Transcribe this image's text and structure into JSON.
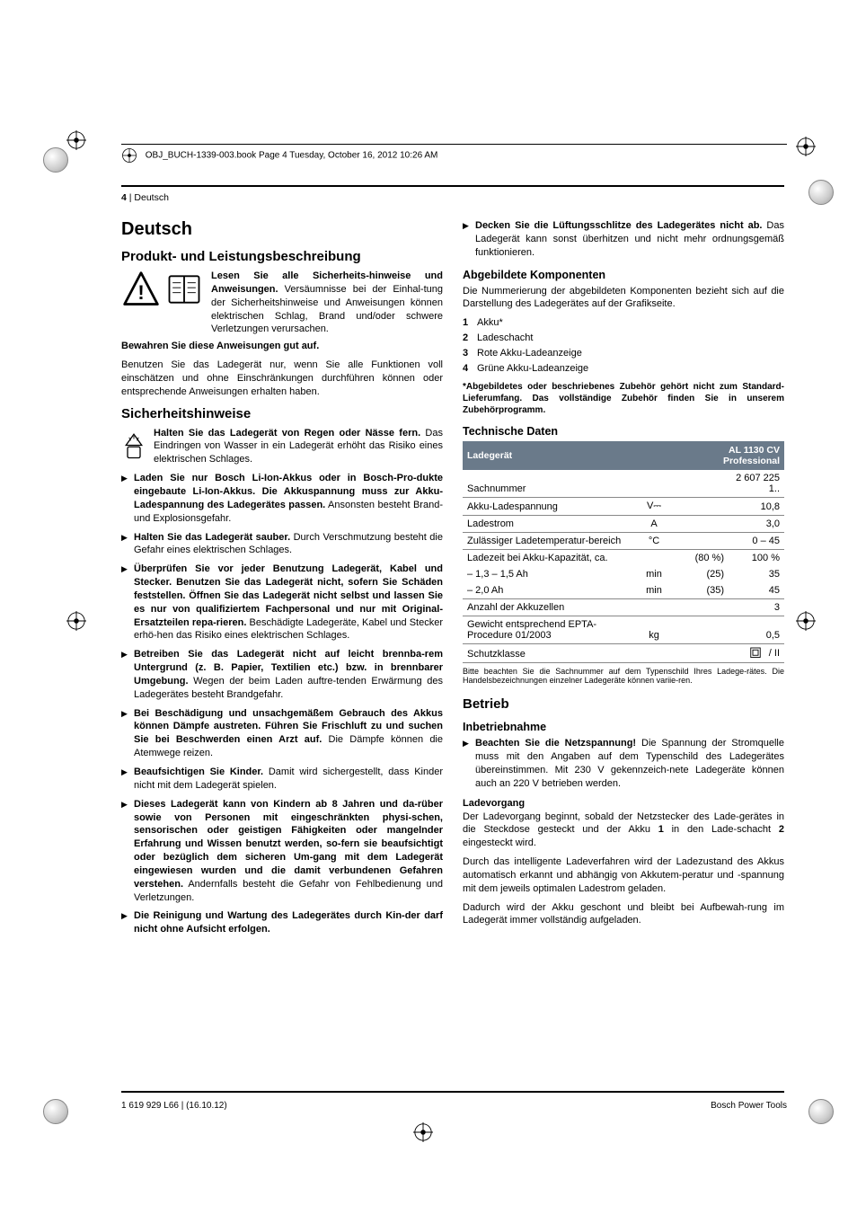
{
  "meta": {
    "header_line": "OBJ_BUCH-1339-003.book  Page 4  Tuesday, October 16, 2012  10:26 AM",
    "page_num": "4",
    "page_lang": "Deutsch",
    "footer_left": "1 619 929 L66 | (16.10.12)",
    "footer_right": "Bosch Power Tools"
  },
  "left": {
    "h1": "Deutsch",
    "h2a": "Produkt- und Leistungsbeschreibung",
    "intro_bold": "Lesen Sie alle Sicherheits-hinweise und Anweisungen.",
    "intro_rest": " Versäumnisse bei der Einhal-tung der Sicherheitshinweise und Anweisungen können elektrischen Schlag, Brand und/oder schwere Verletzungen verursachen.",
    "intro_keep": "Bewahren Sie diese Anweisungen gut auf.",
    "intro_use": "Benutzen Sie das Ladegerät nur, wenn Sie alle Funktionen voll einschätzen und ohne Einschränkungen durchführen können oder entsprechende Anweisungen erhalten haben.",
    "h2b": "Sicherheitshinweise",
    "rain_bold": "Halten Sie das Ladegerät von Regen oder Nässe fern.",
    "rain_rest": " Das Eindringen von Wasser in ein Ladegerät erhöht das Risiko eines elektrischen Schlages.",
    "bullets": [
      {
        "b": "Laden Sie nur Bosch Li-Ion-Akkus oder in Bosch-Pro-dukte eingebaute Li-Ion-Akkus. Die Akkuspannung muss zur Akku-Ladespannung des Ladegerätes passen.",
        "r": " Ansonsten besteht Brand- und Explosionsgefahr."
      },
      {
        "b": "Halten Sie das Ladegerät sauber.",
        "r": " Durch Verschmutzung besteht die Gefahr eines elektrischen Schlages."
      },
      {
        "b": "Überprüfen Sie vor jeder Benutzung Ladegerät, Kabel und Stecker. Benutzen Sie das Ladegerät nicht, sofern Sie Schäden feststellen. Öffnen Sie das Ladegerät nicht selbst und lassen Sie es nur von qualifiziertem Fachpersonal und nur mit Original-Ersatzteilen repa-rieren.",
        "r": " Beschädigte Ladegeräte, Kabel und Stecker erhö-hen das Risiko eines elektrischen Schlages."
      },
      {
        "b": "Betreiben Sie das Ladegerät nicht auf leicht brennba-rem Untergrund (z. B. Papier, Textilien etc.) bzw. in brennbarer Umgebung.",
        "r": " Wegen der beim Laden auftre-tenden Erwärmung des Ladegerätes besteht Brandgefahr."
      },
      {
        "b": "Bei Beschädigung und unsachgemäßem Gebrauch des Akkus können Dämpfe austreten. Führen Sie Frischluft zu und suchen Sie bei Beschwerden einen Arzt auf.",
        "r": " Die Dämpfe können die Atemwege reizen."
      },
      {
        "b": "Beaufsichtigen Sie Kinder.",
        "r": " Damit wird sichergestellt, dass Kinder nicht mit dem Ladegerät spielen."
      },
      {
        "b": "Dieses Ladegerät kann von Kindern ab 8 Jahren und da-rüber sowie von Personen mit eingeschränkten physi-schen, sensorischen oder geistigen Fähigkeiten oder mangelnder Erfahrung und Wissen benutzt werden, so-fern sie beaufsichtigt oder bezüglich dem sicheren Um-gang mit dem Ladegerät eingewiesen wurden und die damit verbundenen Gefahren verstehen.",
        "r": " Andernfalls besteht die Gefahr von Fehlbedienung und Verletzungen."
      },
      {
        "b": "Die Reinigung und Wartung des Ladegerätes durch Kin-der darf nicht ohne Aufsicht erfolgen.",
        "r": ""
      }
    ]
  },
  "right": {
    "vent_bold": "Decken Sie die Lüftungsschlitze des Ladegerätes nicht ab.",
    "vent_rest": " Das Ladegerät kann sonst überhitzen und nicht mehr ordnungsgemäß funktionieren.",
    "h3a": "Abgebildete Komponenten",
    "comp_intro": "Die Nummerierung der abgebildeten Komponenten bezieht sich auf die Darstellung des Ladegerätes auf der Grafikseite.",
    "comp_list": [
      "Akku*",
      "Ladeschacht",
      "Rote Akku-Ladeanzeige",
      "Grüne Akku-Ladeanzeige"
    ],
    "comp_note": "*Abgebildetes oder beschriebenes Zubehör gehört nicht zum Standard-Lieferumfang. Das vollständige Zubehör finden Sie in unserem Zubehörprogramm.",
    "h3b": "Technische Daten",
    "table": {
      "head_left": "Ladegerät",
      "head_right_1": "AL 1130 CV",
      "head_right_2": "Professional",
      "rows": [
        {
          "label": "Sachnummer",
          "unit": "",
          "v1": "",
          "v2": "2 607 225 1.."
        },
        {
          "label": "Akku-Ladespannung",
          "unit": "V⎓",
          "v1": "",
          "v2": "10,8"
        },
        {
          "label": "Ladestrom",
          "unit": "A",
          "v1": "",
          "v2": "3,0"
        },
        {
          "label": "Zulässiger Ladetemperatur-bereich",
          "unit": "°C",
          "v1": "",
          "v2": "0 – 45"
        },
        {
          "label": "Ladezeit bei Akku-Kapazität, ca.",
          "unit": "",
          "v1": "(80 %)",
          "v2": "100 %",
          "noborder": true
        },
        {
          "label": "–  1,3 – 1,5 Ah",
          "unit": "min",
          "v1": "(25)",
          "v2": "35",
          "noborder": true
        },
        {
          "label": "–  2,0 Ah",
          "unit": "min",
          "v1": "(35)",
          "v2": "45"
        },
        {
          "label": "Anzahl der Akkuzellen",
          "unit": "",
          "v1": "",
          "v2": "3"
        },
        {
          "label": "Gewicht entsprechend EPTA-Procedure 01/2003",
          "unit": "kg",
          "v1": "",
          "v2": "0,5"
        },
        {
          "label": "Schutzklasse",
          "unit": "",
          "v1": "",
          "v2": "__ICON__"
        }
      ],
      "footnote": "Bitte beachten Sie die Sachnummer auf dem Typenschild Ihres Ladege-rätes. Die Handelsbezeichnungen einzelner Ladegeräte können variie-ren."
    },
    "h2c": "Betrieb",
    "h3c": "Inbetriebnahme",
    "netz_bold": "Beachten Sie die Netzspannung!",
    "netz_rest": " Die Spannung der Stromquelle muss mit den Angaben auf dem Typenschild des Ladegerätes übereinstimmen. Mit 230 V gekennzeich-nete Ladegeräte können auch an 220 V betrieben werden.",
    "h4a": "Ladevorgang",
    "lade1": "Der Ladevorgang beginnt, sobald der Netzstecker des Lade-gerätes in die Steckdose gesteckt und der Akku <b>1</b> in den Lade-schacht <b>2</b> eingesteckt wird.",
    "lade2": "Durch das intelligente Ladeverfahren wird der Ladezustand des Akkus automatisch erkannt und abhängig von Akkutem-peratur und -spannung mit dem jeweils optimalen Ladestrom geladen.",
    "lade3": "Dadurch wird der Akku geschont und bleibt bei Aufbewah-rung im Ladegerät immer vollständig aufgeladen."
  },
  "colors": {
    "table_head_bg": "#6a7a8a",
    "table_head_fg": "#ffffff",
    "rule": "#000000"
  }
}
